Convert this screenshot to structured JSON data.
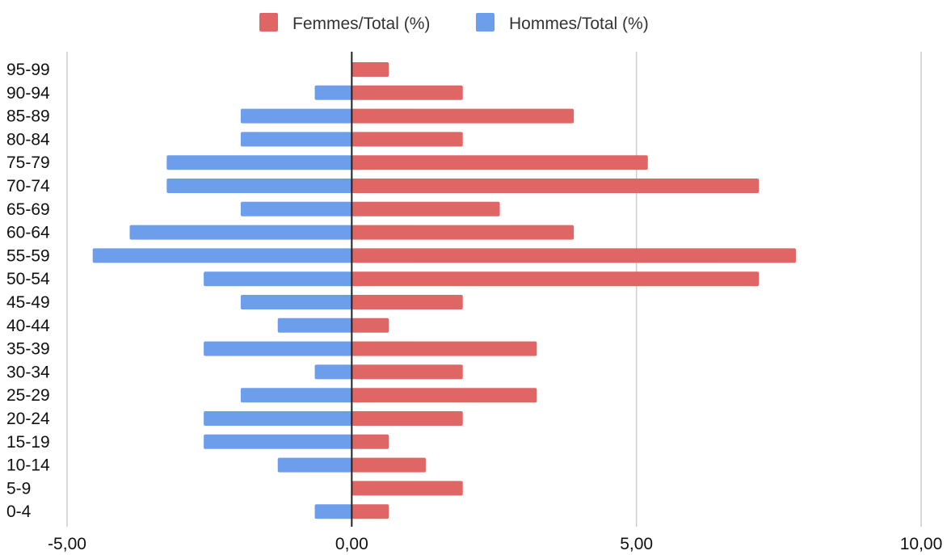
{
  "chart_data": {
    "type": "bar",
    "orientation": "horizontal",
    "categories": [
      "95-99",
      "90-94",
      "85-89",
      "80-84",
      "75-79",
      "70-74",
      "65-69",
      "60-64",
      "55-59",
      "50-54",
      "45-49",
      "40-44",
      "35-39",
      "30-34",
      "25-29",
      "20-24",
      "15-19",
      "10-14",
      "5-9",
      "0-4"
    ],
    "series": [
      {
        "name": "Femmes/Total (%)",
        "color": "#e06666",
        "values": [
          0.65,
          1.95,
          3.9,
          1.95,
          5.2,
          7.15,
          2.6,
          3.9,
          7.8,
          7.15,
          1.95,
          0.65,
          3.25,
          1.95,
          3.25,
          1.95,
          0.65,
          1.3,
          1.95,
          0.65
        ]
      },
      {
        "name": "Hommes/Total (%)",
        "color": "#6d9eeb",
        "values": [
          0,
          -0.65,
          -1.95,
          -1.95,
          -3.25,
          -3.25,
          -1.95,
          -3.9,
          -4.55,
          -2.6,
          -1.95,
          -1.3,
          -2.6,
          -0.65,
          -1.95,
          -2.6,
          -2.6,
          -1.3,
          0,
          -0.65
        ]
      }
    ],
    "xlim": [
      -5,
      10
    ],
    "xticks": [
      "-5,00",
      "0,00",
      "5,00",
      "10,00"
    ],
    "xtick_values": [
      -5,
      0,
      5,
      10
    ],
    "grid": true,
    "legend_position": "top"
  }
}
